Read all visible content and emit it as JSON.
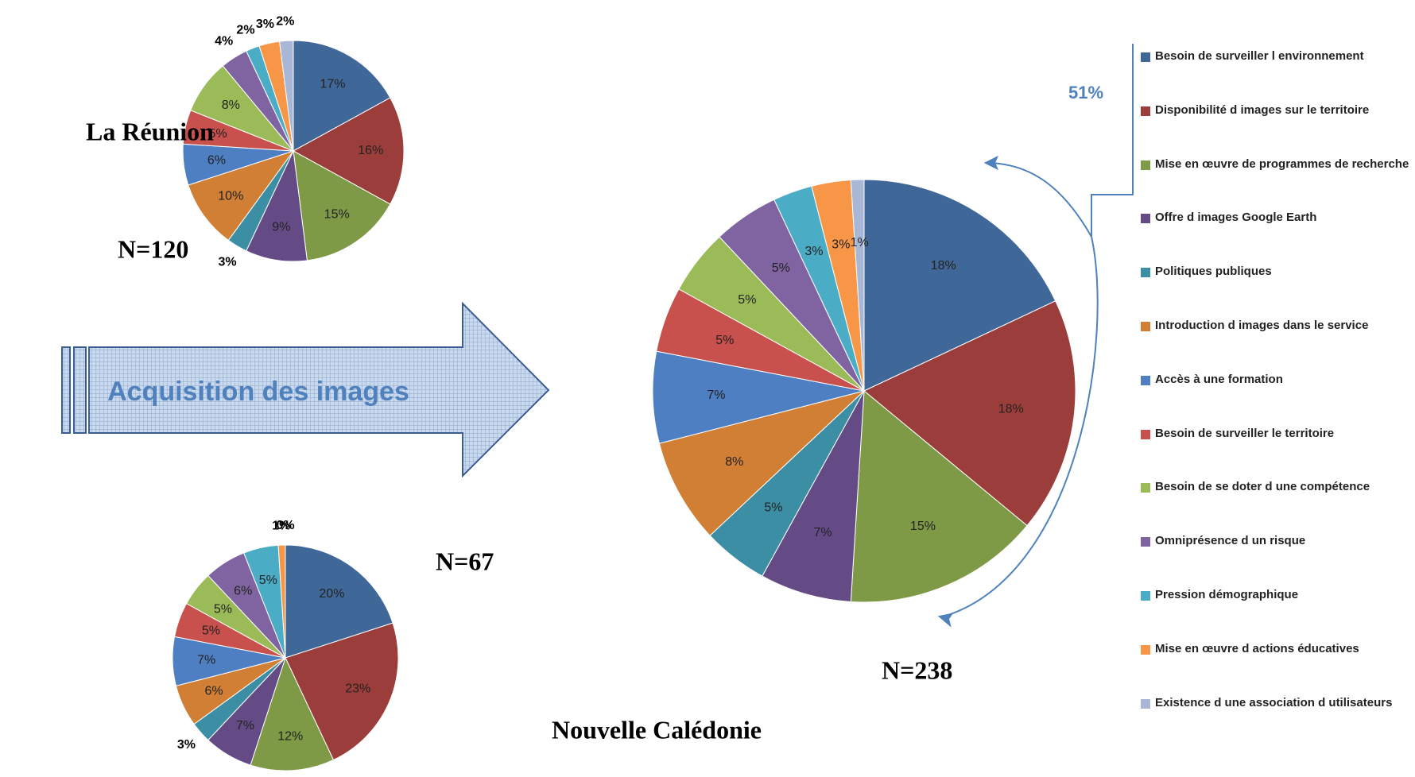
{
  "arrow_label": "Acquisition des images",
  "legend": {
    "categories": [
      "Besoin de surveiller l environnement",
      "Disponibilité d images sur le territoire",
      "Mise en œuvre de programmes de recherche",
      "Offre d images Google Earth",
      "Politiques publiques",
      "Introduction d images dans le service",
      "Accès à une formation",
      "Besoin de surveiller le territoire",
      "Besoin de se doter d une compétence",
      "Omniprésence d un risque",
      "Pression démographique",
      "Mise en œuvre d actions éducatives",
      "Existence d une association d utilisateurs"
    ],
    "colors": [
      "#3f6797",
      "#9b3d3b",
      "#7e9a46",
      "#654b85",
      "#3b8ea3",
      "#d07f34",
      "#4f7fc3",
      "#c8504d",
      "#9bbb59",
      "#8064a2",
      "#4bacc6",
      "#f79646",
      "#a9b7d6"
    ]
  },
  "chart_data": [
    {
      "type": "pie",
      "title": "La Réunion",
      "annotations": [
        "N=120"
      ],
      "values": [
        17,
        16,
        15,
        9,
        3,
        10,
        6,
        5,
        8,
        4,
        2,
        3,
        2
      ],
      "value_labels": [
        "17%",
        "16%",
        "15%",
        "9%",
        "3%",
        "10%",
        "6%",
        "5%",
        "8%",
        "4%",
        "2%",
        "3%",
        "2%"
      ]
    },
    {
      "type": "pie",
      "title": "Nouvelle Calédonie",
      "annotations": [
        "N=67"
      ],
      "values": [
        20,
        23,
        12,
        7,
        3,
        6,
        7,
        5,
        5,
        6,
        5,
        1,
        0
      ],
      "value_labels": [
        "20%",
        "23%",
        "12%",
        "7%",
        "3%",
        "6%",
        "7%",
        "5%",
        "5%",
        "6%",
        "5%",
        "1%",
        "0%"
      ]
    },
    {
      "type": "pie",
      "annotations": [
        "N=238",
        "51%"
      ],
      "values": [
        18,
        18,
        15,
        7,
        5,
        8,
        7,
        5,
        5,
        5,
        3,
        3,
        1
      ],
      "value_labels": [
        "18%",
        "18%",
        "15%",
        "7%",
        "5%",
        "8%",
        "7%",
        "5%",
        "5%",
        "5%",
        "3%",
        "3%",
        "1%"
      ]
    }
  ]
}
